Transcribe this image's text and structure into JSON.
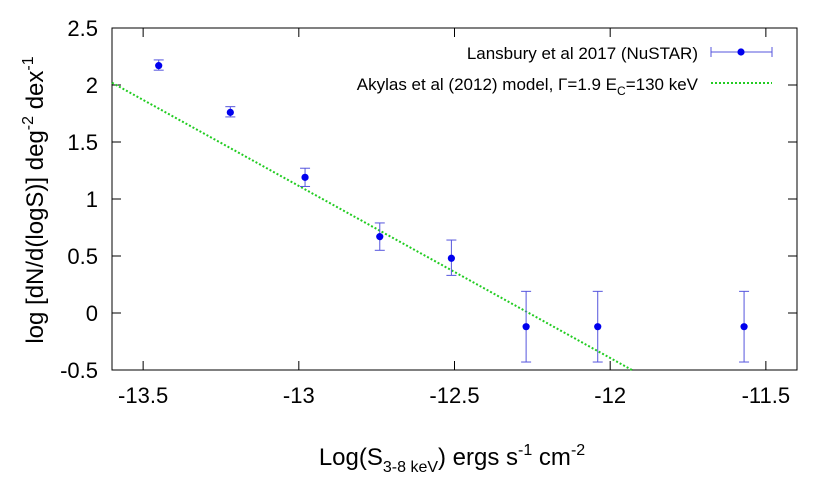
{
  "chart_data": {
    "type": "scatter",
    "xlim": [
      -13.6,
      -11.4
    ],
    "ylim": [
      -0.5,
      2.5
    ],
    "xticks": [
      {
        "value": -13.5,
        "label": "-13.5"
      },
      {
        "value": -13.0,
        "label": "-13"
      },
      {
        "value": -12.5,
        "label": "-12.5"
      },
      {
        "value": -12.0,
        "label": "-12"
      },
      {
        "value": -11.5,
        "label": "-11.5"
      }
    ],
    "yticks": [
      {
        "value": 2.5,
        "label": "2.5"
      },
      {
        "value": 2.0,
        "label": "2"
      },
      {
        "value": 1.5,
        "label": "1.5"
      },
      {
        "value": 1.0,
        "label": "1"
      },
      {
        "value": 0.5,
        "label": "0.5"
      },
      {
        "value": 0.0,
        "label": "0"
      },
      {
        "value": -0.5,
        "label": "-0.5"
      }
    ],
    "xlabel": {
      "pre": "Log(S",
      "sub": "3-8 keV",
      "mid": ") ergs s",
      "sup1": "-1",
      "mid2": " cm",
      "sup2": "-2"
    },
    "ylabel": {
      "pre": "log [dN/d(logS)] deg",
      "sup1": "-2",
      "mid": " dex",
      "sup2": "-1"
    },
    "grid": false,
    "legend_position": "top-right",
    "series": [
      {
        "name": "Lansbury et al 2017 (NuSTAR)",
        "kind": "points-errorbars",
        "color": "#0000ee",
        "errorbar_color": "#5555dd",
        "points": [
          {
            "x": -13.45,
            "y": 2.17,
            "ylo": 2.13,
            "yhi": 2.22
          },
          {
            "x": -13.22,
            "y": 1.76,
            "ylo": 1.72,
            "yhi": 1.81
          },
          {
            "x": -12.98,
            "y": 1.19,
            "ylo": 1.11,
            "yhi": 1.27
          },
          {
            "x": -12.74,
            "y": 0.67,
            "ylo": 0.55,
            "yhi": 0.79
          },
          {
            "x": -12.51,
            "y": 0.48,
            "ylo": 0.33,
            "yhi": 0.64
          },
          {
            "x": -12.27,
            "y": -0.12,
            "ylo": -0.43,
            "yhi": 0.19
          },
          {
            "x": -12.04,
            "y": -0.12,
            "ylo": -0.43,
            "yhi": 0.19
          },
          {
            "x": -11.57,
            "y": -0.12,
            "ylo": -0.43,
            "yhi": 0.19
          }
        ]
      },
      {
        "name_parts": {
          "pre": "Akylas et al (2012) model, Γ=1.9 E",
          "sub": "C",
          "post": "=130 keV"
        },
        "name": "Akylas et al (2012) model, Γ=1.9 EC=130 keV",
        "kind": "dotted-line",
        "color": "#22cc22",
        "line": {
          "x_start": -13.6,
          "y_start": 2.02,
          "x_end": -11.93,
          "y_end": -0.5
        }
      }
    ]
  }
}
